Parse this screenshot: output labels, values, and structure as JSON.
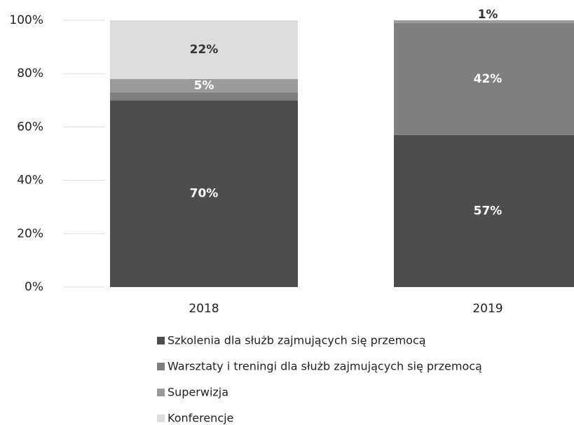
{
  "chart_data": {
    "type": "stacked_bar",
    "categories": [
      "2018",
      "2019"
    ],
    "series": [
      {
        "name": "Szkolenia dla służb zajmujących się przemocą",
        "color": "#4d4d4d",
        "values": [
          70,
          57
        ],
        "value_labels": [
          "70%",
          "57%"
        ]
      },
      {
        "name": "Warsztaty i treningi dla służb zajmujących się przemocą",
        "color": "#7f7f7f",
        "values": [
          3,
          42
        ],
        "value_labels": [
          "3%",
          "42%"
        ]
      },
      {
        "name": "Superwizja",
        "color": "#9a9a9a",
        "values": [
          5,
          1
        ],
        "value_labels": [
          "5%",
          "1%"
        ]
      },
      {
        "name": "Konferencje",
        "color": "#dcdcdc",
        "values": [
          22,
          null
        ],
        "value_labels": [
          "22%",
          null
        ]
      }
    ],
    "ylim": [
      0,
      100
    ],
    "yticks": [
      {
        "value": 0,
        "label": "0%"
      },
      {
        "value": 20,
        "label": "20%"
      },
      {
        "value": 40,
        "label": "40%"
      },
      {
        "value": 60,
        "label": "60%"
      },
      {
        "value": 80,
        "label": "80%"
      },
      {
        "value": 100,
        "label": "100%"
      }
    ],
    "legend": "bottom"
  }
}
